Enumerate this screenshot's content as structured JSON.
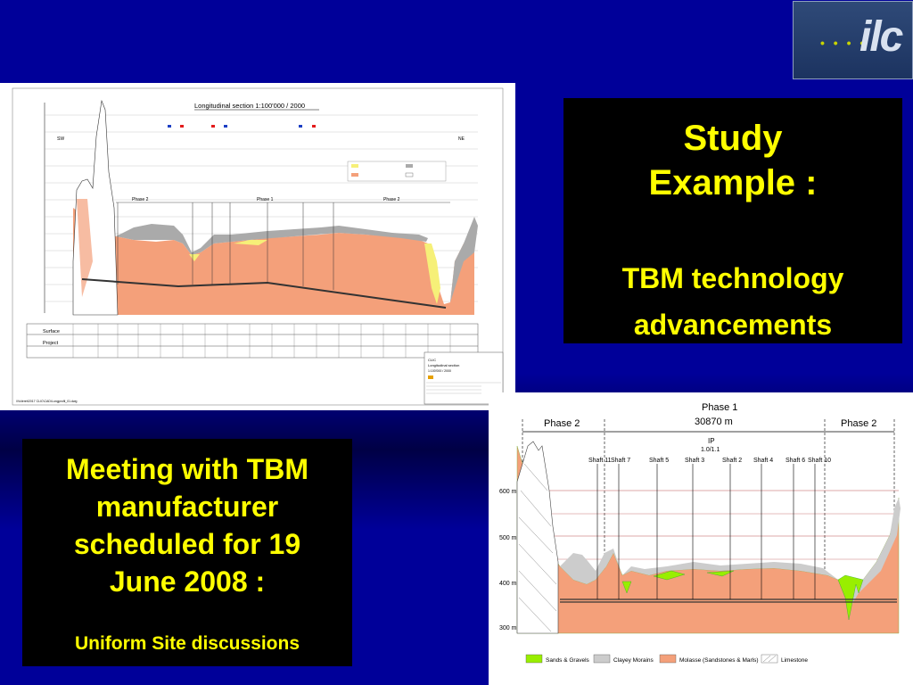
{
  "logo": {
    "text": "ilc",
    "dots": "• • • • •"
  },
  "study": {
    "title_line1": "Study",
    "title_line2": "Example :",
    "sub_line1": "TBM technology",
    "sub_line2": "advancements"
  },
  "meeting": {
    "line1": "Meeting with TBM",
    "line2": "manufacturer",
    "line3": "scheduled for 19",
    "line4": "June 2008 :",
    "sub": "Uniform Site discussions"
  },
  "section1": {
    "title": "Longitudinal section 1:100'000 / 2000",
    "sw": "SW",
    "ne": "NE",
    "phase_left": "Phase 2",
    "phase_mid": "Phase 1",
    "phase_right": "Phase 2",
    "row_surface": "Surface",
    "row_project": "Project",
    "footer_path": "\\\\Vcleret\\2017 CLIC\\CAD\\Longprofil_01.dwg",
    "titleblock_line1": "CLIC",
    "titleblock_line2": "Longitudinal section",
    "titleblock_line3": "1:100'000 / 2000"
  },
  "section2": {
    "phase_left": "Phase 2",
    "phase_mid": "Phase 1",
    "phase_mid_len": "30870 m",
    "phase_right": "Phase 2",
    "ip": "IP",
    "ip_sub": "1.0/1.1",
    "shafts": [
      "Shaft 11",
      "Shaft 7",
      "Shaft 5",
      "Shaft 3",
      "Shaft 2",
      "Shaft 4",
      "Shaft 6",
      "Shaft 10"
    ],
    "elev_labels": [
      "600 m",
      "500 m",
      "400 m",
      "300 m"
    ],
    "legend": [
      "Sands & Gravels",
      "Clayey Morains",
      "Molasse (Sandstones & Marls)",
      "Limestone"
    ],
    "colors": {
      "sand": "#99ee00",
      "moraine": "#cccccc",
      "molasse": "#f4a07a",
      "limestone": "#ffffff"
    }
  }
}
